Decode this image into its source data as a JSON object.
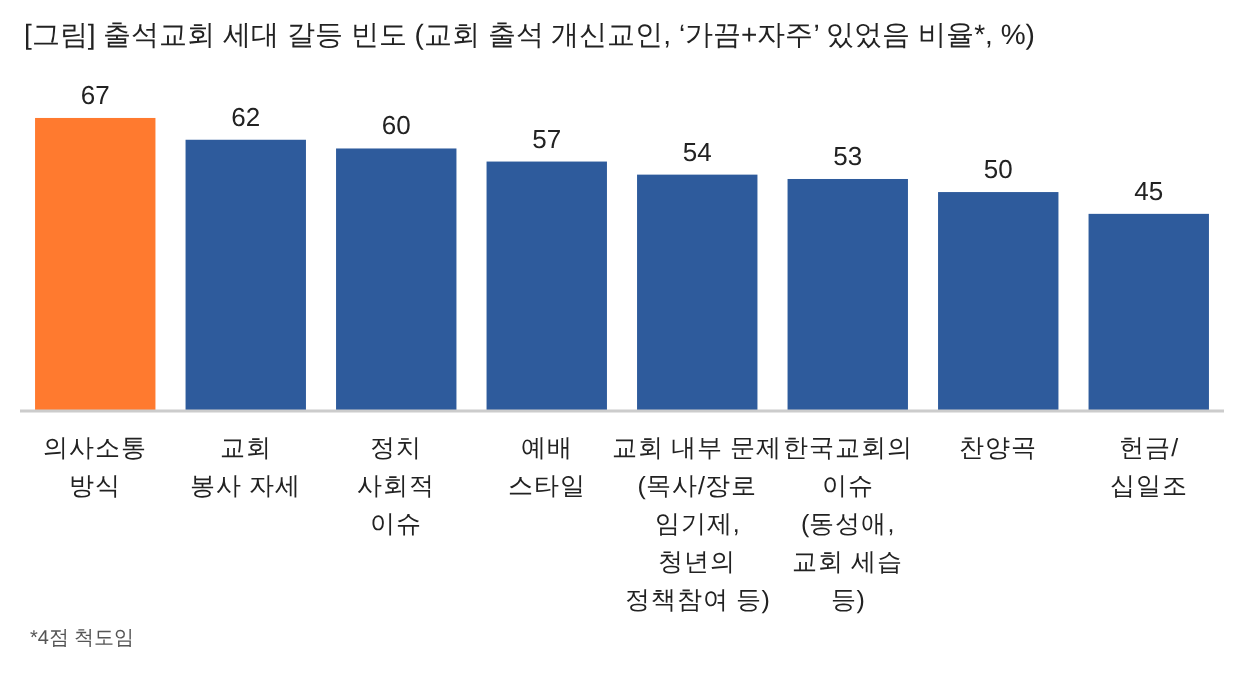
{
  "chart_data": {
    "type": "bar",
    "title": "[그림] 출석교회 세대 갈등 빈도 (교회 출석 개신교인, ‘가끔+자주’ 있었음 비율*, %)",
    "categories": [
      "의사소통\n방식",
      "교회\n봉사 자세",
      "정치\n사회적\n이슈",
      "예배\n스타일",
      "교회 내부 문제\n(목사/장로\n임기제,\n청년의\n정책참여 등)",
      "한국교회의\n이슈\n(동성애,\n교회 세습\n등)",
      "찬양곡",
      "헌금/\n십일조"
    ],
    "values": [
      67,
      62,
      60,
      57,
      54,
      53,
      50,
      45
    ],
    "colors": [
      "#ff7a2f",
      "#2e5b9c",
      "#2e5b9c",
      "#2e5b9c",
      "#2e5b9c",
      "#2e5b9c",
      "#2e5b9c",
      "#2e5b9c"
    ],
    "data_labels": true,
    "annotations": [
      "*4점 척도임"
    ]
  }
}
